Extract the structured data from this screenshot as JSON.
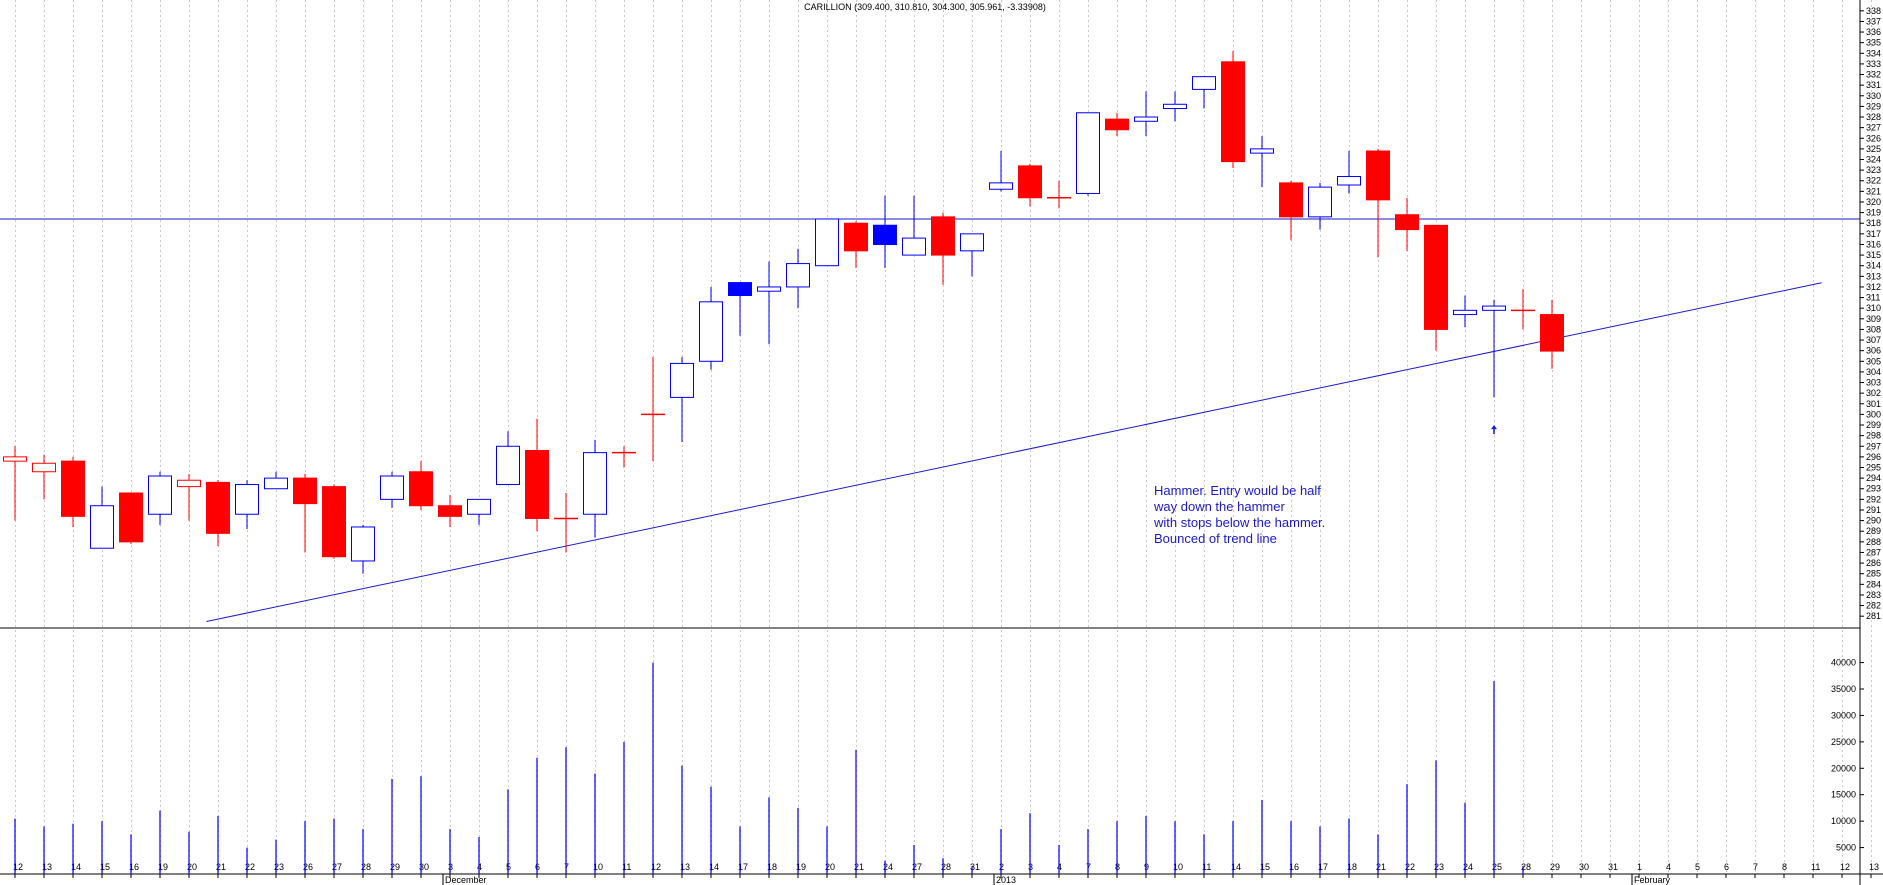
{
  "title": "CARILLION (309.400, 310.810, 304.300, 305.961, -3.33908)",
  "chart_data": {
    "type": "candlestick",
    "title": "CARILLION (309.400, 310.810, 304.300, 305.961, -3.33908)",
    "colors": {
      "up": "#0000ff",
      "down": "#ff0000",
      "line": "#1a1acc",
      "grid": "#c8c8c8"
    },
    "price_axis": {
      "ylim": [
        280.5,
        338.5
      ],
      "ticks": [
        281,
        282,
        283,
        284,
        285,
        286,
        287,
        288,
        289,
        290,
        291,
        292,
        293,
        294,
        295,
        296,
        297,
        298,
        299,
        300,
        301,
        302,
        303,
        304,
        305,
        306,
        307,
        308,
        309,
        310,
        311,
        312,
        313,
        314,
        315,
        316,
        317,
        318,
        319,
        320,
        321,
        322,
        323,
        324,
        325,
        326,
        327,
        328,
        329,
        330,
        331,
        332,
        333,
        334,
        335,
        336,
        337,
        338
      ]
    },
    "volume_axis": {
      "ylim": [
        0,
        42000
      ],
      "ticks": [
        5000,
        10000,
        15000,
        20000,
        25000,
        30000,
        35000,
        40000
      ]
    },
    "x_labels": [
      "12",
      "13",
      "14",
      "15",
      "16",
      "19",
      "20",
      "21",
      "22",
      "23",
      "26",
      "27",
      "28",
      "29",
      "30",
      "3",
      "4",
      "5",
      "6",
      "7",
      "10",
      "11",
      "12",
      "13",
      "14",
      "17",
      "18",
      "19",
      "20",
      "21",
      "24",
      "27",
      "28",
      "31",
      "2",
      "3",
      "4",
      "7",
      "8",
      "9",
      "10",
      "11",
      "14",
      "15",
      "16",
      "17",
      "18",
      "21",
      "22",
      "23",
      "24",
      "25",
      "28",
      "29",
      "30",
      "31",
      "1",
      "4",
      "5",
      "6",
      "7",
      "8",
      "11",
      "12",
      "13"
    ],
    "month_labels": [
      {
        "text": "December",
        "index": 15
      },
      {
        "text": "2013",
        "index": 34
      },
      {
        "text": "February",
        "index": 56
      }
    ],
    "candles": [
      {
        "o": 295.6,
        "h": 297.0,
        "l": 290.0,
        "c": 296.0,
        "dir": "flat"
      },
      {
        "o": 295.4,
        "h": 296.2,
        "l": 292.0,
        "c": 294.6,
        "dir": "flat"
      },
      {
        "o": 295.6,
        "h": 296.0,
        "l": 289.4,
        "c": 290.4,
        "dir": "down"
      },
      {
        "o": 287.4,
        "h": 293.2,
        "l": 287.4,
        "c": 291.4,
        "dir": "up"
      },
      {
        "o": 292.6,
        "h": 292.6,
        "l": 287.8,
        "c": 288.0,
        "dir": "down"
      },
      {
        "o": 290.6,
        "h": 294.6,
        "l": 289.6,
        "c": 294.2,
        "dir": "up"
      },
      {
        "o": 293.8,
        "h": 294.4,
        "l": 290.0,
        "c": 293.2,
        "dir": "flat"
      },
      {
        "o": 293.6,
        "h": 293.8,
        "l": 287.6,
        "c": 288.8,
        "dir": "down"
      },
      {
        "o": 290.6,
        "h": 293.8,
        "l": 289.2,
        "c": 293.4,
        "dir": "up"
      },
      {
        "o": 293.0,
        "h": 294.6,
        "l": 293.0,
        "c": 294.0,
        "dir": "up"
      },
      {
        "o": 294.0,
        "h": 294.4,
        "l": 287.0,
        "c": 291.6,
        "dir": "down"
      },
      {
        "o": 293.2,
        "h": 293.4,
        "l": 286.4,
        "c": 286.6,
        "dir": "down"
      },
      {
        "o": 286.2,
        "h": 289.6,
        "l": 285.0,
        "c": 289.4,
        "dir": "up"
      },
      {
        "o": 292.0,
        "h": 294.6,
        "l": 291.2,
        "c": 294.2,
        "dir": "up"
      },
      {
        "o": 294.6,
        "h": 295.6,
        "l": 291.0,
        "c": 291.4,
        "dir": "down"
      },
      {
        "o": 291.4,
        "h": 292.4,
        "l": 289.4,
        "c": 290.4,
        "dir": "down"
      },
      {
        "o": 290.6,
        "h": 292.0,
        "l": 289.6,
        "c": 292.0,
        "dir": "up"
      },
      {
        "o": 293.4,
        "h": 298.4,
        "l": 293.4,
        "c": 297.0,
        "dir": "up"
      },
      {
        "o": 296.6,
        "h": 299.6,
        "l": 289.0,
        "c": 290.2,
        "dir": "down"
      },
      {
        "o": 290.2,
        "h": 292.6,
        "l": 287.0,
        "c": 290.2,
        "dir": "flat"
      },
      {
        "o": 290.6,
        "h": 297.6,
        "l": 288.4,
        "c": 296.4,
        "dir": "up"
      },
      {
        "o": 296.4,
        "h": 297.0,
        "l": 295.0,
        "c": 296.4,
        "dir": "flat"
      },
      {
        "o": 300.0,
        "h": 305.4,
        "l": 295.6,
        "c": 300.0,
        "dir": "flat"
      },
      {
        "o": 301.6,
        "h": 305.4,
        "l": 297.4,
        "c": 304.8,
        "dir": "up"
      },
      {
        "o": 305.0,
        "h": 312.0,
        "l": 304.2,
        "c": 310.6,
        "dir": "up"
      },
      {
        "o": 311.2,
        "h": 312.4,
        "l": 307.4,
        "c": 312.4,
        "dir": "up"
      },
      {
        "o": 311.6,
        "h": 314.4,
        "l": 306.6,
        "c": 312.0,
        "dir": "up"
      },
      {
        "o": 312.0,
        "h": 315.6,
        "l": 310.0,
        "c": 314.2,
        "dir": "up"
      },
      {
        "o": 314.0,
        "h": 318.4,
        "l": 314.0,
        "c": 318.4,
        "dir": "up"
      },
      {
        "o": 318.0,
        "h": 318.2,
        "l": 313.8,
        "c": 315.4,
        "dir": "down"
      },
      {
        "o": 316.0,
        "h": 320.6,
        "l": 313.8,
        "c": 317.8,
        "dir": "up"
      },
      {
        "o": 315.0,
        "h": 320.6,
        "l": 315.0,
        "c": 316.6,
        "dir": "up"
      },
      {
        "o": 318.6,
        "h": 319.0,
        "l": 312.2,
        "c": 315.0,
        "dir": "down"
      },
      {
        "o": 315.4,
        "h": 317.0,
        "l": 313.0,
        "c": 317.0,
        "dir": "up"
      },
      {
        "o": 321.2,
        "h": 324.8,
        "l": 321.0,
        "c": 321.8,
        "dir": "up"
      },
      {
        "o": 323.4,
        "h": 323.6,
        "l": 319.6,
        "c": 320.4,
        "dir": "down"
      },
      {
        "o": 320.4,
        "h": 322.0,
        "l": 319.4,
        "c": 320.4,
        "dir": "flat"
      },
      {
        "o": 320.8,
        "h": 328.4,
        "l": 320.6,
        "c": 328.4,
        "dir": "up"
      },
      {
        "o": 327.8,
        "h": 328.4,
        "l": 326.2,
        "c": 326.8,
        "dir": "down"
      },
      {
        "o": 327.6,
        "h": 330.4,
        "l": 326.2,
        "c": 328.0,
        "dir": "up"
      },
      {
        "o": 328.8,
        "h": 330.4,
        "l": 327.6,
        "c": 329.2,
        "dir": "up"
      },
      {
        "o": 330.6,
        "h": 331.8,
        "l": 328.8,
        "c": 331.8,
        "dir": "up"
      },
      {
        "o": 333.2,
        "h": 334.2,
        "l": 323.2,
        "c": 323.8,
        "dir": "down"
      },
      {
        "o": 324.6,
        "h": 326.2,
        "l": 321.4,
        "c": 325.0,
        "dir": "up"
      },
      {
        "o": 321.8,
        "h": 322.0,
        "l": 316.4,
        "c": 318.6,
        "dir": "down"
      },
      {
        "o": 318.6,
        "h": 321.8,
        "l": 317.4,
        "c": 321.4,
        "dir": "up"
      },
      {
        "o": 321.6,
        "h": 324.8,
        "l": 320.8,
        "c": 322.4,
        "dir": "up"
      },
      {
        "o": 324.8,
        "h": 325.0,
        "l": 314.8,
        "c": 320.2,
        "dir": "down"
      },
      {
        "o": 318.8,
        "h": 320.4,
        "l": 315.4,
        "c": 317.4,
        "dir": "down"
      },
      {
        "o": 317.8,
        "h": 317.8,
        "l": 306.0,
        "c": 308.0,
        "dir": "down"
      },
      {
        "o": 309.4,
        "h": 311.2,
        "l": 308.2,
        "c": 309.8,
        "dir": "up"
      },
      {
        "o": 309.8,
        "h": 310.8,
        "l": 301.6,
        "c": 310.2,
        "dir": "up"
      },
      {
        "o": 309.8,
        "h": 311.8,
        "l": 308.0,
        "c": 309.8,
        "dir": "flat"
      },
      {
        "o": 309.4,
        "h": 310.8,
        "l": 304.3,
        "c": 305.96,
        "dir": "down"
      }
    ],
    "volumes": [
      10500,
      9000,
      9500,
      10000,
      7500,
      12000,
      8000,
      11000,
      5000,
      6500,
      10000,
      10500,
      8500,
      18000,
      18500,
      8500,
      7000,
      16000,
      22000,
      24000,
      19000,
      25000,
      40000,
      20500,
      16500,
      9000,
      14500,
      12500,
      9000,
      23500,
      2500,
      5500,
      3000,
      1500,
      8500,
      11500,
      5500,
      8500,
      10000,
      11000,
      10000,
      7500,
      10000,
      14000,
      10000,
      9000,
      10500,
      7500,
      17000,
      21500,
      13500,
      36500,
      1500,
      0,
      0,
      0,
      0,
      0,
      0,
      0,
      0,
      0,
      0,
      0,
      0
    ],
    "horizontal_line": {
      "y": 318.4
    },
    "trend_line": {
      "from": {
        "index": 6.6,
        "y": 280.5
      },
      "to": {
        "index": 62.3,
        "y": 312.4
      }
    },
    "arrow": {
      "index": 51,
      "y": 298.9
    },
    "annotation": {
      "lines": [
        "Hammer.  Entry would be half",
        "way down the hammer",
        "with stops below the hammer.",
        "Bounced of trend line"
      ]
    }
  }
}
